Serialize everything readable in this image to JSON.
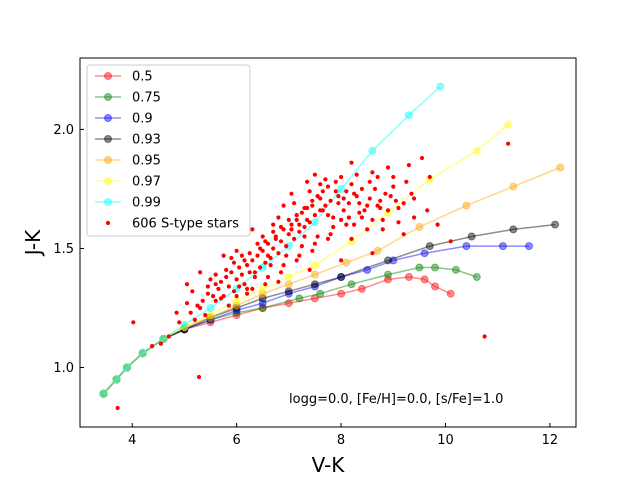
{
  "chart_data": {
    "type": "line",
    "title": "",
    "xlabel": "V-K",
    "ylabel": "J-K",
    "xlim": [
      3.0,
      12.5
    ],
    "ylim": [
      0.75,
      2.3
    ],
    "xticks": [
      4,
      6,
      8,
      10,
      12
    ],
    "yticks": [
      1.0,
      1.5,
      2.0
    ],
    "xtick_labels": [
      "4",
      "6",
      "8",
      "10",
      "12"
    ],
    "ytick_labels": [
      "1.0",
      "1.5",
      "2.0"
    ],
    "grid": false,
    "legend_position": "top-left",
    "annotation": "logg=0.0, [Fe/H]=0.0, [s/Fe]=1.0",
    "series": [
      {
        "name": "0.5",
        "color": "#ff0000",
        "x": [
          3.45,
          3.7,
          3.9,
          4.2,
          4.6,
          5.0,
          5.5,
          6.0,
          6.5,
          7.0,
          7.5,
          8.0,
          8.4,
          8.9,
          9.3,
          9.6,
          9.8,
          10.1
        ],
        "y": [
          0.89,
          0.95,
          1.0,
          1.06,
          1.12,
          1.16,
          1.19,
          1.22,
          1.25,
          1.27,
          1.29,
          1.31,
          1.33,
          1.37,
          1.38,
          1.37,
          1.34,
          1.31
        ]
      },
      {
        "name": "0.75",
        "color": "#008000",
        "x": [
          3.45,
          3.7,
          3.9,
          4.2,
          4.6,
          5.0,
          5.5,
          6.0,
          6.5,
          7.2,
          7.6,
          8.2,
          8.9,
          9.5,
          9.8,
          10.2,
          10.6
        ],
        "y": [
          0.89,
          0.95,
          1.0,
          1.06,
          1.12,
          1.16,
          1.2,
          1.23,
          1.25,
          1.29,
          1.31,
          1.35,
          1.39,
          1.42,
          1.42,
          1.41,
          1.38
        ]
      },
      {
        "name": "0.9",
        "color": "#0000ff",
        "x": [
          3.45,
          3.7,
          3.9,
          4.2,
          4.6,
          5.0,
          5.5,
          6.0,
          6.5,
          7.0,
          7.5,
          8.0,
          8.5,
          9.0,
          9.6,
          10.4,
          11.1,
          11.6
        ],
        "y": [
          0.89,
          0.95,
          1.0,
          1.06,
          1.12,
          1.16,
          1.2,
          1.24,
          1.27,
          1.31,
          1.34,
          1.38,
          1.41,
          1.45,
          1.48,
          1.51,
          1.51,
          1.51
        ]
      },
      {
        "name": "0.93",
        "color": "#000000",
        "x": [
          3.45,
          3.7,
          3.9,
          4.2,
          4.6,
          5.0,
          5.5,
          6.0,
          6.5,
          7.0,
          7.5,
          8.0,
          8.9,
          9.7,
          10.5,
          11.3,
          12.1
        ],
        "y": [
          0.89,
          0.95,
          1.0,
          1.06,
          1.12,
          1.16,
          1.21,
          1.25,
          1.29,
          1.32,
          1.35,
          1.38,
          1.45,
          1.51,
          1.55,
          1.58,
          1.6
        ]
      },
      {
        "name": "0.95",
        "color": "#ffa500",
        "x": [
          3.45,
          3.7,
          3.9,
          4.2,
          4.6,
          5.0,
          5.5,
          6.0,
          6.5,
          7.0,
          7.5,
          8.1,
          8.7,
          9.5,
          10.4,
          11.3,
          12.2
        ],
        "y": [
          0.89,
          0.95,
          1.0,
          1.06,
          1.12,
          1.17,
          1.21,
          1.26,
          1.31,
          1.35,
          1.39,
          1.44,
          1.49,
          1.59,
          1.68,
          1.76,
          1.84
        ]
      },
      {
        "name": "0.97",
        "color": "#ffff00",
        "x": [
          3.45,
          3.7,
          3.9,
          4.2,
          4.6,
          5.0,
          5.5,
          6.0,
          6.5,
          7.0,
          7.5,
          8.2,
          8.9,
          9.7,
          10.6,
          11.2
        ],
        "y": [
          0.89,
          0.95,
          1.0,
          1.06,
          1.12,
          1.17,
          1.22,
          1.28,
          1.33,
          1.38,
          1.43,
          1.53,
          1.65,
          1.79,
          1.91,
          2.02
        ]
      },
      {
        "name": "0.99",
        "color": "#00ffff",
        "x": [
          3.45,
          3.7,
          3.9,
          4.2,
          4.6,
          5.0,
          5.5,
          6.0,
          6.5,
          7.0,
          7.5,
          8.0,
          8.6,
          9.3,
          9.9
        ],
        "y": [
          0.89,
          0.95,
          1.0,
          1.06,
          1.12,
          1.18,
          1.25,
          1.33,
          1.42,
          1.51,
          1.61,
          1.75,
          1.91,
          2.06,
          2.18
        ]
      }
    ],
    "scatter": {
      "name": "606 S-type stars",
      "color": "#ff0000",
      "points": [
        [
          3.72,
          0.83
        ],
        [
          4.02,
          1.19
        ],
        [
          4.38,
          1.09
        ],
        [
          4.55,
          1.1
        ],
        [
          4.7,
          1.13
        ],
        [
          4.9,
          1.19
        ],
        [
          5.05,
          1.27
        ],
        [
          5.12,
          1.23
        ],
        [
          5.2,
          1.2
        ],
        [
          5.3,
          1.25
        ],
        [
          5.35,
          1.28
        ],
        [
          5.45,
          1.31
        ],
        [
          5.55,
          1.3
        ],
        [
          5.6,
          1.35
        ],
        [
          5.65,
          1.33
        ],
        [
          5.7,
          1.36
        ],
        [
          5.75,
          1.3
        ],
        [
          5.8,
          1.38
        ],
        [
          5.85,
          1.34
        ],
        [
          5.9,
          1.4
        ],
        [
          5.95,
          1.32
        ],
        [
          6.0,
          1.37
        ],
        [
          6.05,
          1.42
        ],
        [
          6.1,
          1.39
        ],
        [
          6.15,
          1.35
        ],
        [
          6.2,
          1.43
        ],
        [
          6.25,
          1.4
        ],
        [
          6.3,
          1.45
        ],
        [
          6.35,
          1.38
        ],
        [
          6.4,
          1.47
        ],
        [
          6.45,
          1.42
        ],
        [
          6.5,
          1.49
        ],
        [
          6.55,
          1.44
        ],
        [
          6.6,
          1.52
        ],
        [
          6.65,
          1.46
        ],
        [
          6.7,
          1.5
        ],
        [
          6.75,
          1.55
        ],
        [
          6.8,
          1.48
        ],
        [
          6.85,
          1.53
        ],
        [
          6.9,
          1.58
        ],
        [
          6.95,
          1.51
        ],
        [
          7.0,
          1.56
        ],
        [
          7.05,
          1.6
        ],
        [
          7.1,
          1.54
        ],
        [
          7.15,
          1.62
        ],
        [
          7.2,
          1.57
        ],
        [
          7.25,
          1.65
        ],
        [
          7.3,
          1.59
        ],
        [
          7.35,
          1.67
        ],
        [
          7.4,
          1.61
        ],
        [
          7.45,
          1.7
        ],
        [
          7.5,
          1.64
        ],
        [
          7.55,
          1.72
        ],
        [
          7.6,
          1.66
        ],
        [
          7.65,
          1.74
        ],
        [
          7.7,
          1.68
        ],
        [
          7.75,
          1.76
        ],
        [
          7.8,
          1.7
        ],
        [
          7.85,
          1.63
        ],
        [
          7.9,
          1.78
        ],
        [
          7.95,
          1.72
        ],
        [
          8.0,
          1.8
        ],
        [
          8.05,
          1.66
        ],
        [
          8.1,
          1.74
        ],
        [
          8.15,
          1.69
        ],
        [
          8.2,
          1.77
        ],
        [
          8.25,
          1.6
        ],
        [
          8.3,
          1.72
        ],
        [
          8.35,
          1.65
        ],
        [
          8.4,
          1.75
        ],
        [
          8.5,
          1.68
        ],
        [
          8.55,
          1.78
        ],
        [
          8.6,
          1.62
        ],
        [
          8.7,
          1.8
        ],
        [
          8.75,
          1.7
        ],
        [
          8.8,
          1.58
        ],
        [
          8.85,
          1.73
        ],
        [
          8.9,
          1.66
        ],
        [
          9.0,
          1.76
        ],
        [
          9.1,
          1.61
        ],
        [
          9.2,
          1.69
        ],
        [
          9.3,
          1.85
        ],
        [
          9.4,
          1.63
        ],
        [
          9.55,
          1.88
        ],
        [
          10.1,
          1.53
        ],
        [
          10.75,
          1.13
        ],
        [
          11.2,
          1.94
        ],
        [
          5.28,
          0.96
        ],
        [
          5.05,
          1.35
        ],
        [
          5.6,
          1.28
        ],
        [
          6.0,
          1.3
        ],
        [
          6.3,
          1.33
        ],
        [
          6.6,
          1.38
        ],
        [
          6.9,
          1.43
        ],
        [
          7.2,
          1.47
        ],
        [
          7.5,
          1.52
        ],
        [
          7.8,
          1.56
        ],
        [
          8.1,
          1.6
        ],
        [
          8.4,
          1.63
        ],
        [
          5.4,
          1.22
        ],
        [
          5.85,
          1.26
        ],
        [
          6.2,
          1.31
        ],
        [
          6.55,
          1.35
        ],
        [
          6.85,
          1.4
        ],
        [
          7.15,
          1.45
        ],
        [
          7.45,
          1.49
        ],
        [
          7.75,
          1.54
        ],
        [
          6.1,
          1.47
        ],
        [
          6.4,
          1.52
        ],
        [
          6.7,
          1.57
        ],
        [
          7.0,
          1.62
        ],
        [
          7.3,
          1.67
        ],
        [
          7.6,
          1.71
        ],
        [
          6.8,
          1.63
        ],
        [
          7.1,
          1.69
        ],
        [
          7.4,
          1.74
        ],
        [
          7.7,
          1.79
        ],
        [
          7.05,
          1.73
        ],
        [
          7.35,
          1.78
        ],
        [
          5.95,
          1.44
        ],
        [
          6.25,
          1.48
        ],
        [
          6.55,
          1.53
        ],
        [
          6.85,
          1.59
        ],
        [
          7.15,
          1.64
        ],
        [
          7.45,
          1.68
        ],
        [
          7.75,
          1.64
        ],
        [
          8.05,
          1.71
        ],
        [
          8.35,
          1.69
        ],
        [
          8.65,
          1.75
        ],
        [
          8.95,
          1.72
        ],
        [
          9.25,
          1.78
        ],
        [
          8.2,
          1.54
        ],
        [
          8.5,
          1.58
        ],
        [
          8.8,
          1.62
        ],
        [
          9.1,
          1.67
        ],
        [
          5.15,
          1.32
        ],
        [
          5.5,
          1.37
        ],
        [
          5.8,
          1.41
        ],
        [
          6.15,
          1.45
        ],
        [
          6.45,
          1.5
        ],
        [
          6.75,
          1.54
        ],
        [
          7.05,
          1.58
        ],
        [
          7.35,
          1.62
        ],
        [
          7.65,
          1.66
        ],
        [
          7.95,
          1.69
        ],
        [
          8.25,
          1.73
        ],
        [
          8.55,
          1.71
        ],
        [
          4.85,
          1.23
        ],
        [
          5.25,
          1.26
        ],
        [
          5.7,
          1.29
        ],
        [
          6.05,
          1.34
        ],
        [
          6.35,
          1.4
        ],
        [
          6.65,
          1.43
        ],
        [
          6.95,
          1.47
        ],
        [
          7.25,
          1.51
        ],
        [
          7.55,
          1.55
        ],
        [
          7.85,
          1.59
        ],
        [
          8.15,
          1.63
        ],
        [
          8.45,
          1.66
        ],
        [
          8.75,
          1.67
        ],
        [
          9.05,
          1.7
        ],
        [
          9.35,
          1.73
        ],
        [
          9.65,
          1.66
        ],
        [
          9.85,
          1.6
        ],
        [
          9.2,
          1.56
        ],
        [
          8.6,
          1.48
        ],
        [
          8.0,
          1.45
        ],
        [
          7.4,
          1.41
        ],
        [
          6.8,
          1.36
        ],
        [
          6.2,
          1.33
        ],
        [
          5.6,
          1.39
        ],
        [
          5.9,
          1.46
        ],
        [
          6.5,
          1.55
        ],
        [
          7.2,
          1.6
        ],
        [
          7.9,
          1.74
        ],
        [
          8.6,
          1.82
        ],
        [
          9.0,
          1.8
        ],
        [
          8.3,
          1.81
        ],
        [
          7.6,
          1.77
        ],
        [
          6.9,
          1.68
        ],
        [
          6.3,
          1.58
        ],
        [
          5.75,
          1.47
        ],
        [
          5.45,
          1.34
        ],
        [
          6.6,
          1.47
        ],
        [
          7.3,
          1.55
        ],
        [
          8.0,
          1.62
        ],
        [
          8.7,
          1.68
        ],
        [
          9.4,
          1.71
        ],
        [
          9.7,
          1.8
        ],
        [
          8.9,
          1.84
        ],
        [
          8.2,
          1.86
        ],
        [
          7.5,
          1.81
        ],
        [
          6.7,
          1.6
        ],
        [
          6.0,
          1.49
        ],
        [
          5.3,
          1.4
        ]
      ]
    }
  }
}
